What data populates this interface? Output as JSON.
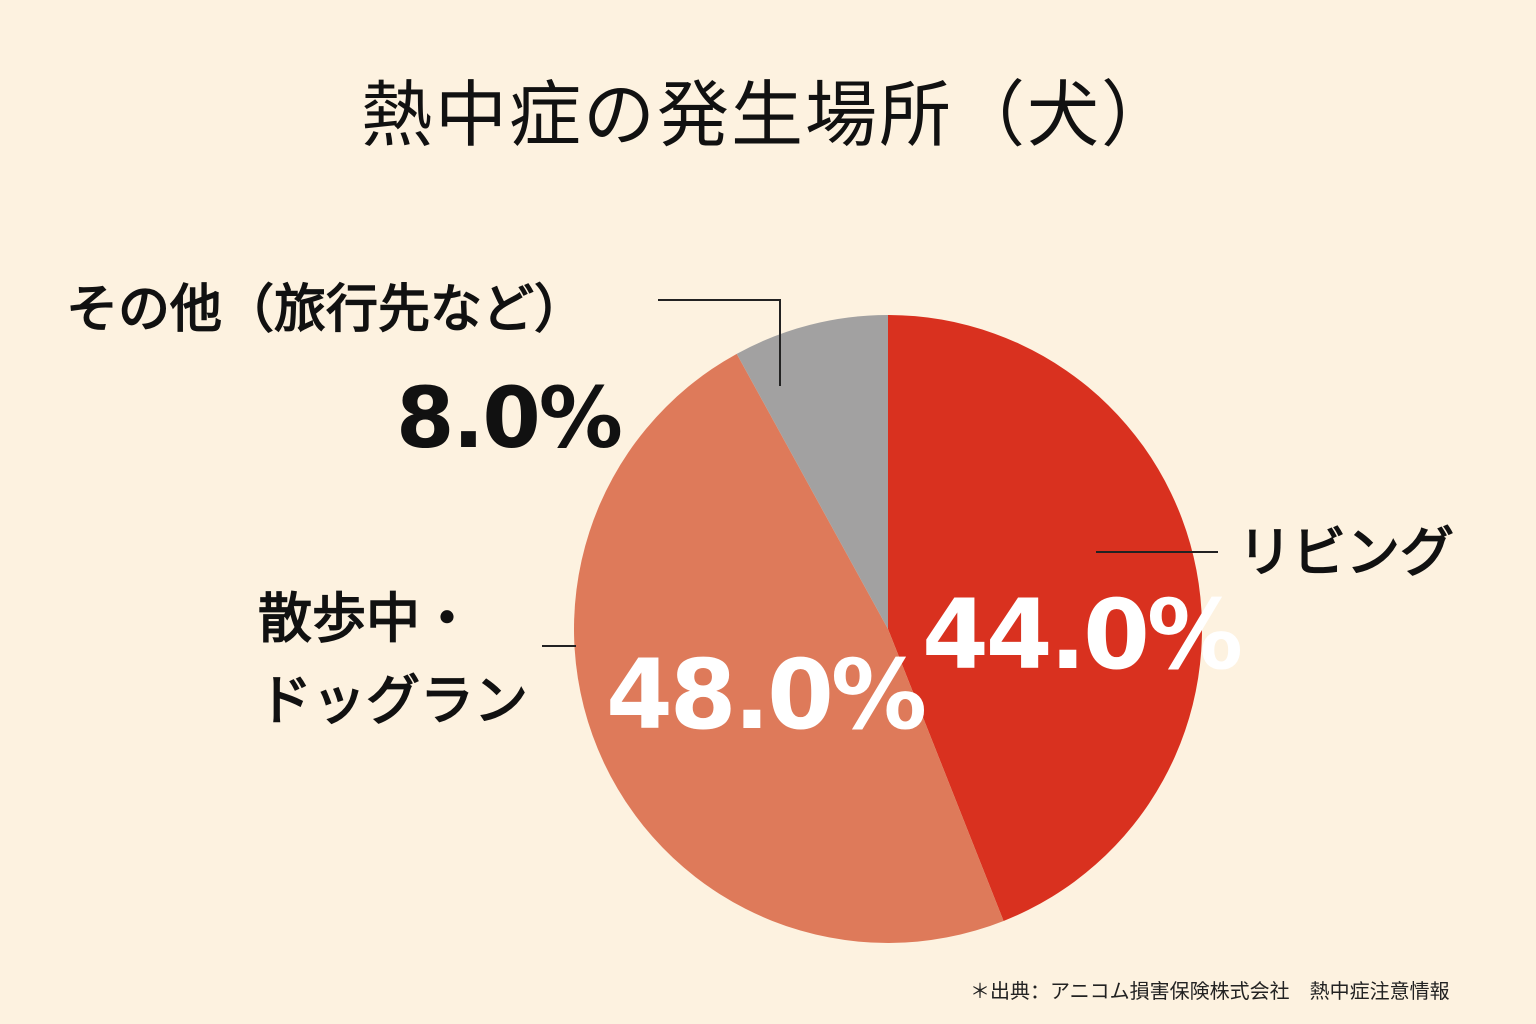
{
  "chart_data": {
    "type": "pie",
    "title": "熱中症の発生場所（犬）",
    "slices": [
      {
        "label": "リビング",
        "value": 44.0,
        "value_label": "44.0%",
        "color": "#d9311f"
      },
      {
        "label_lines": [
          "散歩中・",
          "ドッグラン"
        ],
        "value": 48.0,
        "value_label": "48.0%",
        "color": "#de7a5a"
      },
      {
        "label": "その他（旅行先など）",
        "value": 8.0,
        "value_label": "8.0%",
        "color": "#a2a1a1"
      }
    ],
    "start_angle": "12 o'clock",
    "direction": "clockwise",
    "source": "＊出典：アニコム損害保険株式会社　熱中症注意情報"
  },
  "colors": {
    "background": "#fdf2e0",
    "text": "#111111",
    "leader_line": "#222222"
  }
}
